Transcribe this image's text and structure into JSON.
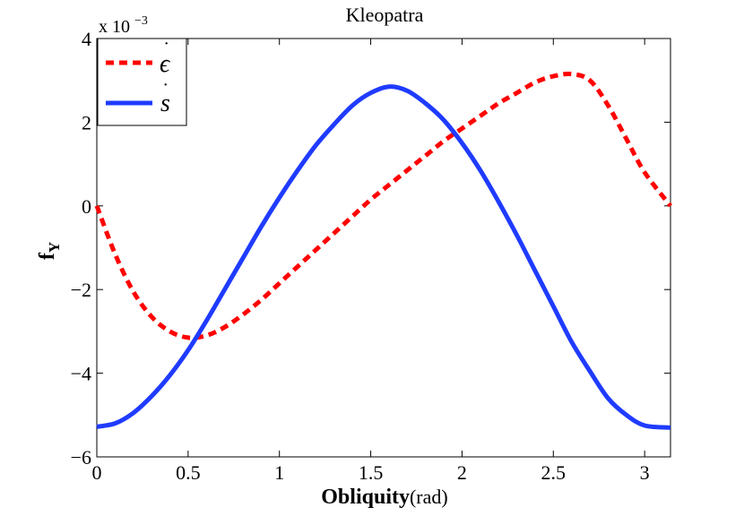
{
  "chart_data": {
    "type": "line",
    "title": "Kleopatra",
    "xlabel_bold": "Obliquity",
    "xlabel_unit": "(rad)",
    "ylabel_main": "f",
    "ylabel_sub": "Y",
    "y_multiplier_prefix": "x 10",
    "y_multiplier_exp": "−3",
    "xlim": [
      0,
      3.1416
    ],
    "ylim": [
      -6,
      4
    ],
    "xticks": [
      0,
      0.5,
      1,
      1.5,
      2,
      2.5,
      3
    ],
    "xtick_labels": [
      "0",
      "0.5",
      "1",
      "1.5",
      "2",
      "2.5",
      "3"
    ],
    "yticks": [
      -6,
      -4,
      -2,
      0,
      2,
      4
    ],
    "ytick_labels": [
      "−6",
      "−4",
      "−2",
      "0",
      "2",
      "4"
    ],
    "grid": false,
    "legend_position": "top-left",
    "series": [
      {
        "name": "ε̇",
        "label_base": "ϵ",
        "style": "dashed",
        "color": "#ff0000",
        "x": [
          0,
          0.1,
          0.2,
          0.3,
          0.4,
          0.5,
          0.6,
          0.7,
          0.8,
          0.9,
          1.0,
          1.1,
          1.2,
          1.3,
          1.4,
          1.5,
          1.6,
          1.7,
          1.8,
          1.9,
          2.0,
          2.1,
          2.2,
          2.3,
          2.4,
          2.5,
          2.6,
          2.7,
          2.8,
          2.9,
          3.0,
          3.1416
        ],
        "values": [
          0.0,
          -1.15,
          -2.05,
          -2.65,
          -3.0,
          -3.15,
          -3.1,
          -2.9,
          -2.6,
          -2.25,
          -1.85,
          -1.45,
          -1.05,
          -0.65,
          -0.25,
          0.15,
          0.5,
          0.85,
          1.2,
          1.55,
          1.85,
          2.15,
          2.45,
          2.7,
          2.95,
          3.1,
          3.15,
          3.0,
          2.4,
          1.6,
          0.8,
          0.0
        ]
      },
      {
        "name": "ṡ",
        "label_base": "s",
        "style": "solid",
        "color": "#1f3bff",
        "x": [
          0,
          0.1,
          0.2,
          0.3,
          0.4,
          0.5,
          0.6,
          0.7,
          0.8,
          0.9,
          1.0,
          1.1,
          1.2,
          1.3,
          1.4,
          1.5,
          1.6,
          1.7,
          1.8,
          1.9,
          2.0,
          2.1,
          2.2,
          2.3,
          2.4,
          2.5,
          2.6,
          2.7,
          2.8,
          2.9,
          3.0,
          3.1416
        ],
        "values": [
          -5.28,
          -5.2,
          -4.95,
          -4.55,
          -4.05,
          -3.45,
          -2.75,
          -2.0,
          -1.25,
          -0.5,
          0.2,
          0.85,
          1.45,
          1.95,
          2.4,
          2.7,
          2.85,
          2.75,
          2.45,
          2.05,
          1.5,
          0.85,
          0.1,
          -0.7,
          -1.55,
          -2.4,
          -3.25,
          -3.95,
          -4.6,
          -5.0,
          -5.25,
          -5.3
        ]
      }
    ]
  }
}
